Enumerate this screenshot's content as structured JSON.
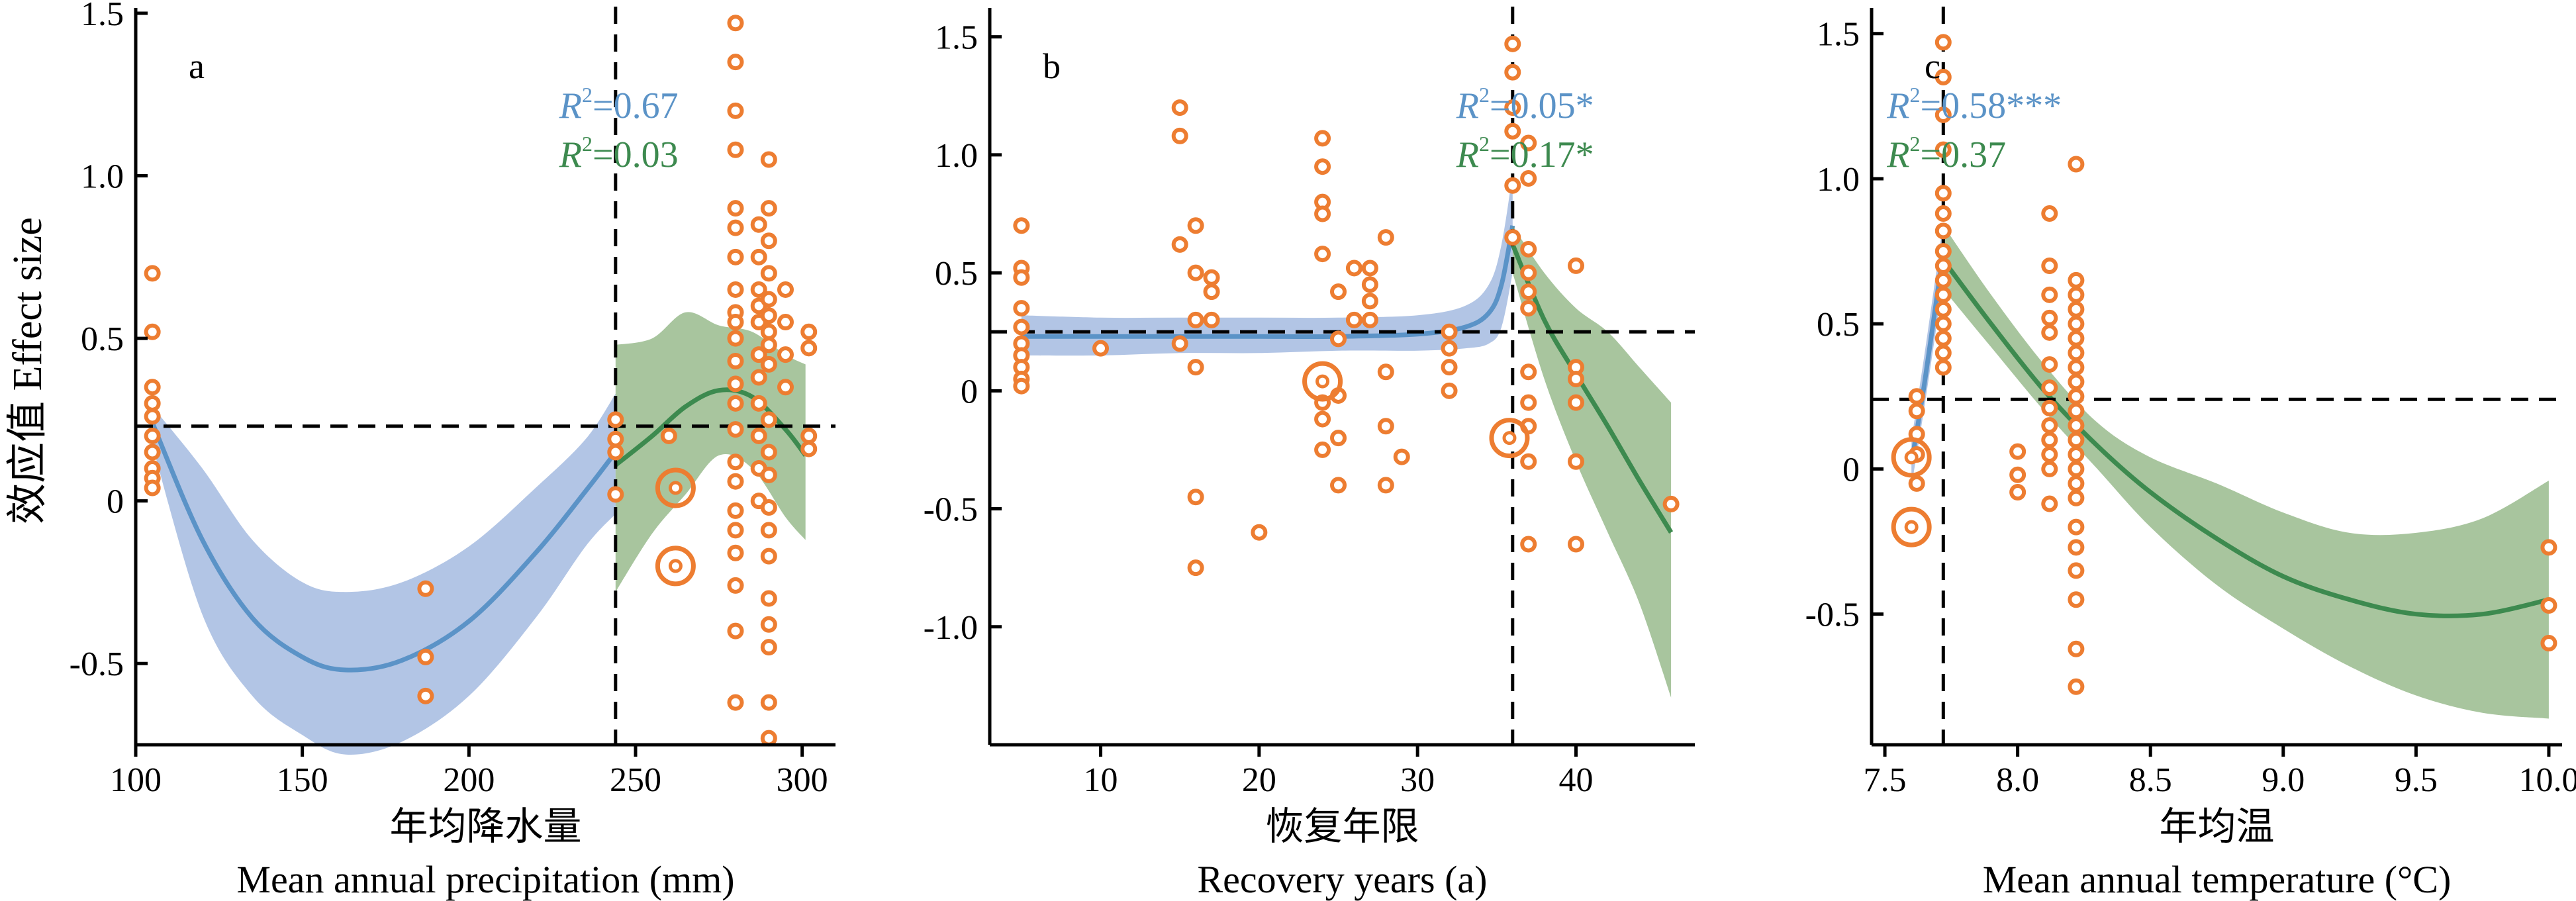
{
  "y_axis_label": "效应值 Effect size",
  "colors": {
    "point": "#ED7D31",
    "blue_line": "#5B93C7",
    "blue_band": "#7F9FD4",
    "green_line": "#3D8A4F",
    "green_band": "#6E9E5E",
    "axis": "#000000"
  },
  "chart_data": [
    {
      "type": "scatter",
      "panel_label": "a",
      "xlabel_cn": "年均降水量",
      "xlabel_en": "Mean annual precipitation (mm)",
      "xlim": [
        100,
        310
      ],
      "ylim": [
        -0.75,
        1.5
      ],
      "xticks": [
        100,
        150,
        200,
        250,
        300
      ],
      "xtick_labels": [
        "100",
        "150",
        "200",
        "250",
        "300"
      ],
      "yticks": [
        -0.5,
        0,
        0.5,
        1.0,
        1.5
      ],
      "ytick_labels": [
        "-0.5",
        "0",
        "0.5",
        "1.0",
        "1.5"
      ],
      "threshold_x": 244,
      "threshold_y": 0.23,
      "r2_blue": "=0.67",
      "r2_green": "=0.03",
      "r2_prefix": "R",
      "r2_sup": "2",
      "points": [
        [
          105,
          0.7
        ],
        [
          105,
          0.52
        ],
        [
          105,
          0.35
        ],
        [
          105,
          0.3
        ],
        [
          105,
          0.26
        ],
        [
          105,
          0.2
        ],
        [
          105,
          0.15
        ],
        [
          105,
          0.1
        ],
        [
          105,
          0.07
        ],
        [
          105,
          0.04
        ],
        [
          187,
          -0.27
        ],
        [
          187,
          -0.48
        ],
        [
          187,
          -0.6
        ],
        [
          244,
          0.25
        ],
        [
          244,
          0.19
        ],
        [
          244,
          0.15
        ],
        [
          244,
          0.02
        ],
        [
          260,
          0.2
        ],
        [
          280,
          1.47
        ],
        [
          280,
          1.35
        ],
        [
          280,
          1.2
        ],
        [
          280,
          1.08
        ],
        [
          280,
          0.9
        ],
        [
          280,
          0.84
        ],
        [
          280,
          0.75
        ],
        [
          280,
          0.65
        ],
        [
          280,
          0.58
        ],
        [
          280,
          0.55
        ],
        [
          280,
          0.5
        ],
        [
          280,
          0.43
        ],
        [
          280,
          0.36
        ],
        [
          280,
          0.3
        ],
        [
          280,
          0.22
        ],
        [
          280,
          0.12
        ],
        [
          280,
          0.06
        ],
        [
          280,
          -0.03
        ],
        [
          280,
          -0.09
        ],
        [
          280,
          -0.16
        ],
        [
          280,
          -0.26
        ],
        [
          280,
          -0.4
        ],
        [
          280,
          -0.62
        ],
        [
          287,
          0.85
        ],
        [
          287,
          0.75
        ],
        [
          287,
          0.65
        ],
        [
          287,
          0.6
        ],
        [
          287,
          0.55
        ],
        [
          287,
          0.45
        ],
        [
          287,
          0.38
        ],
        [
          287,
          0.3
        ],
        [
          287,
          0.2
        ],
        [
          287,
          0.1
        ],
        [
          287,
          0.0
        ],
        [
          290,
          1.05
        ],
        [
          290,
          0.9
        ],
        [
          290,
          0.8
        ],
        [
          290,
          0.7
        ],
        [
          290,
          0.62
        ],
        [
          290,
          0.57
        ],
        [
          290,
          0.52
        ],
        [
          290,
          0.48
        ],
        [
          290,
          0.42
        ],
        [
          290,
          0.25
        ],
        [
          290,
          0.15
        ],
        [
          290,
          0.08
        ],
        [
          290,
          -0.02
        ],
        [
          290,
          -0.09
        ],
        [
          290,
          -0.17
        ],
        [
          290,
          -0.3
        ],
        [
          290,
          -0.38
        ],
        [
          290,
          -0.45
        ],
        [
          290,
          -0.62
        ],
        [
          290,
          -0.73
        ],
        [
          295,
          0.65
        ],
        [
          295,
          0.55
        ],
        [
          295,
          0.45
        ],
        [
          295,
          0.35
        ],
        [
          302,
          0.52
        ],
        [
          302,
          0.47
        ],
        [
          302,
          0.2
        ],
        [
          302,
          0.16
        ]
      ],
      "big_points": [
        [
          262,
          0.04
        ],
        [
          262,
          -0.2
        ]
      ],
      "fits": [
        {
          "name": "blue",
          "x": [
            105,
            120,
            135,
            150,
            163,
            180,
            200,
            220,
            235,
            244
          ],
          "y": [
            0.24,
            -0.12,
            -0.36,
            -0.48,
            -0.52,
            -0.49,
            -0.37,
            -0.16,
            0.03,
            0.15
          ],
          "lo": [
            0.17,
            -0.35,
            -0.6,
            -0.72,
            -0.78,
            -0.74,
            -0.6,
            -0.36,
            -0.14,
            -0.04
          ],
          "hi": [
            0.29,
            0.1,
            -0.12,
            -0.25,
            -0.28,
            -0.25,
            -0.14,
            0.04,
            0.19,
            0.33
          ]
        },
        {
          "name": "green",
          "x": [
            244,
            255,
            265,
            275,
            285,
            295,
            301
          ],
          "y": [
            0.11,
            0.2,
            0.29,
            0.34,
            0.32,
            0.22,
            0.14
          ],
          "lo": [
            -0.28,
            -0.1,
            0.02,
            0.14,
            0.1,
            -0.05,
            -0.12
          ],
          "hi": [
            0.48,
            0.5,
            0.58,
            0.54,
            0.52,
            0.45,
            0.42
          ]
        }
      ]
    },
    {
      "type": "scatter",
      "panel_label": "b",
      "xlabel_cn": "恢复年限",
      "xlabel_en": "Recovery years (a)",
      "xlim": [
        3,
        47.5
      ],
      "ylim": [
        -1.5,
        1.6
      ],
      "xticks": [
        10,
        20,
        30,
        40
      ],
      "xtick_labels": [
        "10",
        "20",
        "30",
        "40"
      ],
      "yticks": [
        -1.0,
        -0.5,
        0,
        0.5,
        1.0,
        1.5
      ],
      "ytick_labels": [
        "-1.0",
        "-0.5",
        "0",
        "0.5",
        "1.0",
        "1.5"
      ],
      "threshold_x": 36,
      "threshold_y": 0.25,
      "r2_blue": "=0.05*",
      "r2_green": "=0.17*",
      "r2_prefix": "R",
      "r2_sup": "2",
      "points": [
        [
          5,
          0.7
        ],
        [
          5,
          0.52
        ],
        [
          5,
          0.48
        ],
        [
          5,
          0.35
        ],
        [
          5,
          0.27
        ],
        [
          5,
          0.2
        ],
        [
          5,
          0.15
        ],
        [
          5,
          0.1
        ],
        [
          5,
          0.05
        ],
        [
          5,
          0.02
        ],
        [
          10,
          0.18
        ],
        [
          15,
          1.2
        ],
        [
          15,
          1.08
        ],
        [
          15,
          0.62
        ],
        [
          15,
          0.2
        ],
        [
          16,
          0.7
        ],
        [
          16,
          0.5
        ],
        [
          16,
          0.3
        ],
        [
          16,
          0.1
        ],
        [
          16,
          -0.45
        ],
        [
          16,
          -0.75
        ],
        [
          17,
          0.48
        ],
        [
          17,
          0.42
        ],
        [
          17,
          0.3
        ],
        [
          20,
          -0.6
        ],
        [
          24,
          1.07
        ],
        [
          24,
          0.95
        ],
        [
          24,
          0.8
        ],
        [
          24,
          0.75
        ],
        [
          24,
          0.58
        ],
        [
          24,
          -0.05
        ],
        [
          24,
          -0.12
        ],
        [
          24,
          -0.25
        ],
        [
          25,
          0.42
        ],
        [
          25,
          0.22
        ],
        [
          25,
          -0.02
        ],
        [
          25,
          -0.2
        ],
        [
          25,
          -0.4
        ],
        [
          26,
          0.52
        ],
        [
          26,
          0.3
        ],
        [
          27,
          0.52
        ],
        [
          27,
          0.45
        ],
        [
          27,
          0.38
        ],
        [
          27,
          0.3
        ],
        [
          28,
          0.65
        ],
        [
          28,
          0.08
        ],
        [
          28,
          -0.15
        ],
        [
          28,
          -0.4
        ],
        [
          29,
          -0.28
        ],
        [
          32,
          0.25
        ],
        [
          32,
          0.18
        ],
        [
          32,
          0.1
        ],
        [
          32,
          0.0
        ],
        [
          36,
          1.47
        ],
        [
          36,
          1.35
        ],
        [
          36,
          1.2
        ],
        [
          36,
          1.1
        ],
        [
          36,
          0.87
        ],
        [
          36,
          0.65
        ],
        [
          37,
          1.05
        ],
        [
          37,
          0.9
        ],
        [
          37,
          0.6
        ],
        [
          37,
          0.5
        ],
        [
          37,
          0.42
        ],
        [
          37,
          0.35
        ],
        [
          37,
          0.08
        ],
        [
          37,
          -0.05
        ],
        [
          37,
          -0.15
        ],
        [
          37,
          -0.3
        ],
        [
          37,
          -0.65
        ],
        [
          40,
          0.53
        ],
        [
          40,
          0.1
        ],
        [
          40,
          0.05
        ],
        [
          40,
          -0.05
        ],
        [
          40,
          -0.3
        ],
        [
          40,
          -0.65
        ],
        [
          46,
          -0.48
        ]
      ],
      "big_points": [
        [
          24,
          0.04
        ],
        [
          35.8,
          -0.2
        ]
      ],
      "fits": [
        {
          "name": "blue",
          "x": [
            5,
            10,
            15,
            20,
            25,
            30,
            33,
            34.5,
            35.3,
            36
          ],
          "y": [
            0.23,
            0.23,
            0.23,
            0.23,
            0.23,
            0.24,
            0.27,
            0.33,
            0.45,
            0.7
          ],
          "lo": [
            0.15,
            0.15,
            0.16,
            0.16,
            0.17,
            0.17,
            0.18,
            0.2,
            0.27,
            0.5
          ],
          "hi": [
            0.32,
            0.31,
            0.31,
            0.31,
            0.31,
            0.32,
            0.36,
            0.45,
            0.62,
            0.92
          ]
        },
        {
          "name": "green",
          "x": [
            36,
            38,
            40,
            42,
            44,
            46
          ],
          "y": [
            0.62,
            0.3,
            0.07,
            -0.15,
            -0.38,
            -0.6
          ],
          "lo": [
            0.5,
            0.05,
            -0.3,
            -0.6,
            -0.9,
            -1.3
          ],
          "hi": [
            0.7,
            0.5,
            0.35,
            0.25,
            0.1,
            -0.05
          ]
        }
      ]
    },
    {
      "type": "scatter",
      "panel_label": "c",
      "xlabel_cn": "年均温",
      "xlabel_en": "Mean annual temperature (°C)",
      "xlim": [
        7.45,
        10.05
      ],
      "ylim": [
        -0.95,
        1.57
      ],
      "xticks": [
        7.5,
        8.0,
        8.5,
        9.0,
        9.5,
        10.0
      ],
      "xtick_labels": [
        "7.5",
        "8.0",
        "8.5",
        "9.0",
        "9.5",
        "10.0"
      ],
      "yticks": [
        -0.5,
        0,
        0.5,
        1.0,
        1.5
      ],
      "ytick_labels": [
        "-0.5",
        "0",
        "0.5",
        "1.0",
        "1.5"
      ],
      "threshold_x": 7.72,
      "threshold_y": 0.24,
      "r2_blue": "=0.58***",
      "r2_green": "=0.37",
      "r2_prefix": "R",
      "r2_sup": "2",
      "points": [
        [
          7.62,
          0.25
        ],
        [
          7.62,
          0.2
        ],
        [
          7.62,
          0.12
        ],
        [
          7.62,
          0.05
        ],
        [
          7.62,
          -0.05
        ],
        [
          7.72,
          1.47
        ],
        [
          7.72,
          1.35
        ],
        [
          7.72,
          1.22
        ],
        [
          7.72,
          1.1
        ],
        [
          7.72,
          0.95
        ],
        [
          7.72,
          0.88
        ],
        [
          7.72,
          0.82
        ],
        [
          7.72,
          0.75
        ],
        [
          7.72,
          0.7
        ],
        [
          7.72,
          0.65
        ],
        [
          7.72,
          0.6
        ],
        [
          7.72,
          0.55
        ],
        [
          7.72,
          0.5
        ],
        [
          7.72,
          0.45
        ],
        [
          7.72,
          0.4
        ],
        [
          7.72,
          0.35
        ],
        [
          8.0,
          0.06
        ],
        [
          8.0,
          -0.02
        ],
        [
          8.0,
          -0.08
        ],
        [
          8.12,
          0.88
        ],
        [
          8.12,
          0.7
        ],
        [
          8.12,
          0.6
        ],
        [
          8.12,
          0.52
        ],
        [
          8.12,
          0.47
        ],
        [
          8.12,
          0.36
        ],
        [
          8.12,
          0.28
        ],
        [
          8.12,
          0.21
        ],
        [
          8.12,
          0.15
        ],
        [
          8.12,
          0.1
        ],
        [
          8.12,
          0.05
        ],
        [
          8.12,
          0.0
        ],
        [
          8.12,
          -0.12
        ],
        [
          8.22,
          1.05
        ],
        [
          8.22,
          0.65
        ],
        [
          8.22,
          0.6
        ],
        [
          8.22,
          0.55
        ],
        [
          8.22,
          0.5
        ],
        [
          8.22,
          0.45
        ],
        [
          8.22,
          0.4
        ],
        [
          8.22,
          0.35
        ],
        [
          8.22,
          0.3
        ],
        [
          8.22,
          0.25
        ],
        [
          8.22,
          0.2
        ],
        [
          8.22,
          0.15
        ],
        [
          8.22,
          0.1
        ],
        [
          8.22,
          0.05
        ],
        [
          8.22,
          0.0
        ],
        [
          8.22,
          -0.05
        ],
        [
          8.22,
          -0.1
        ],
        [
          8.22,
          -0.2
        ],
        [
          8.22,
          -0.27
        ],
        [
          8.22,
          -0.35
        ],
        [
          8.22,
          -0.45
        ],
        [
          8.22,
          -0.62
        ],
        [
          8.22,
          -0.75
        ],
        [
          10.0,
          -0.27
        ],
        [
          10.0,
          -0.47
        ],
        [
          10.0,
          -0.6
        ]
      ],
      "big_points": [
        [
          7.6,
          0.04
        ],
        [
          7.6,
          -0.2
        ]
      ],
      "fits": [
        {
          "name": "blue",
          "x": [
            7.6,
            7.65,
            7.72
          ],
          "y": [
            0.02,
            0.3,
            0.75
          ],
          "lo": [
            -0.06,
            0.22,
            0.65
          ],
          "hi": [
            0.1,
            0.4,
            0.85
          ]
        },
        {
          "name": "green",
          "x": [
            7.72,
            7.9,
            8.1,
            8.3,
            8.5,
            8.75,
            9.0,
            9.25,
            9.5,
            9.75,
            10.0
          ],
          "y": [
            0.72,
            0.5,
            0.27,
            0.08,
            -0.08,
            -0.24,
            -0.37,
            -0.45,
            -0.5,
            -0.5,
            -0.45
          ],
          "lo": [
            0.62,
            0.42,
            0.2,
            0.0,
            -0.2,
            -0.4,
            -0.55,
            -0.68,
            -0.78,
            -0.84,
            -0.86
          ],
          "hi": [
            0.84,
            0.6,
            0.36,
            0.16,
            0.04,
            -0.05,
            -0.15,
            -0.22,
            -0.22,
            -0.17,
            -0.04
          ]
        }
      ]
    }
  ]
}
